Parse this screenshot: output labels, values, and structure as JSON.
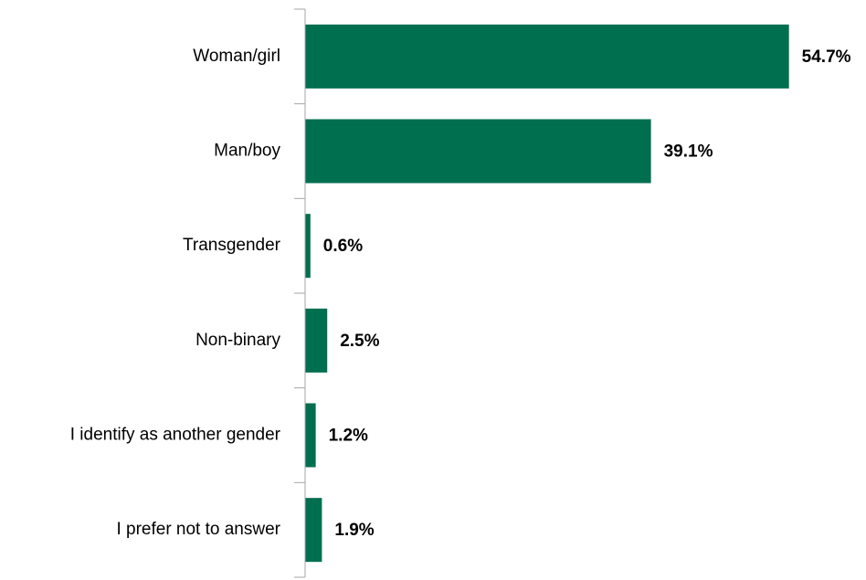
{
  "chart_data": {
    "type": "hbar",
    "categories": [
      "Woman/girl",
      "Man/boy",
      "Transgender",
      "Non-binary",
      "I identify as another gender",
      "I prefer not to answer"
    ],
    "values": [
      54.7,
      39.1,
      0.6,
      2.5,
      1.2,
      1.9
    ],
    "value_labels": [
      "54.7%",
      "39.1%",
      "0.6%",
      "2.5%",
      "1.2%",
      "1.9%"
    ],
    "color": "#006f50",
    "xlim": [
      0,
      60
    ]
  }
}
